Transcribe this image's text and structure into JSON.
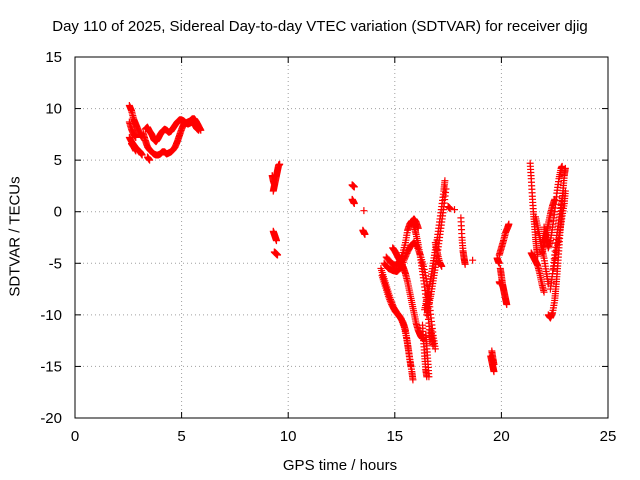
{
  "chart_data": {
    "type": "scatter",
    "title": "Day 110 of 2025, Sidereal Day-to-day VTEC variation (SDTVAR) for receiver djig",
    "xlabel": "GPS time / hours",
    "ylabel": "SDTVAR / TECUs",
    "xlim": [
      0,
      25
    ],
    "ylim": [
      -20,
      15
    ],
    "xticks": [
      0,
      5,
      10,
      15,
      20,
      25
    ],
    "yticks": [
      -20,
      -15,
      -10,
      -5,
      0,
      5,
      10,
      15
    ],
    "grid": true,
    "marker": "+",
    "color": "#ff0000",
    "segments": [
      [
        [
          2.55,
          10.3
        ],
        [
          2.65,
          9.8
        ],
        [
          2.75,
          9.0
        ],
        [
          2.85,
          8.5
        ],
        [
          2.95,
          8.0
        ],
        [
          3.05,
          7.5
        ],
        [
          3.15,
          7.2
        ]
      ],
      [
        [
          2.55,
          8.7
        ],
        [
          2.65,
          8.0
        ],
        [
          2.75,
          7.5
        ],
        [
          2.85,
          7.2
        ]
      ],
      [
        [
          2.55,
          7.2
        ],
        [
          2.65,
          6.8
        ],
        [
          2.75,
          6.5
        ],
        [
          2.85,
          6.2
        ],
        [
          2.95,
          6.0
        ],
        [
          3.05,
          5.8
        ],
        [
          3.15,
          5.5
        ]
      ],
      [
        [
          2.65,
          6.6
        ],
        [
          2.75,
          6.3
        ],
        [
          2.85,
          5.9
        ]
      ],
      [
        [
          3.2,
          7.6
        ],
        [
          3.3,
          6.9
        ],
        [
          3.4,
          6.3
        ],
        [
          3.5,
          6.0
        ],
        [
          3.6,
          5.8
        ],
        [
          3.7,
          5.6
        ],
        [
          3.8,
          5.5
        ],
        [
          3.9,
          5.5
        ],
        [
          4.0,
          5.6
        ],
        [
          4.1,
          5.8
        ],
        [
          4.2,
          5.8
        ],
        [
          4.3,
          5.6
        ],
        [
          4.4,
          5.7
        ],
        [
          4.5,
          5.8
        ],
        [
          4.6,
          6.0
        ],
        [
          4.7,
          6.3
        ],
        [
          4.8,
          6.8
        ],
        [
          4.9,
          7.4
        ],
        [
          5.0,
          8.0
        ],
        [
          5.1,
          8.5
        ],
        [
          5.2,
          8.6
        ],
        [
          5.3,
          8.7
        ],
        [
          5.4,
          8.8
        ],
        [
          5.5,
          9.0
        ],
        [
          5.6,
          9.0
        ],
        [
          5.7,
          8.7
        ],
        [
          5.8,
          8.3
        ],
        [
          5.9,
          7.9
        ]
      ],
      [
        [
          3.3,
          8.0
        ],
        [
          3.4,
          8.2
        ],
        [
          3.5,
          7.8
        ],
        [
          3.6,
          7.5
        ],
        [
          3.7,
          7.0
        ],
        [
          3.8,
          6.8
        ],
        [
          3.9,
          7.1
        ],
        [
          4.0,
          7.5
        ],
        [
          4.1,
          7.8
        ],
        [
          4.2,
          8.0
        ],
        [
          4.3,
          7.9
        ],
        [
          4.4,
          7.7
        ],
        [
          4.5,
          7.8
        ],
        [
          4.6,
          8.1
        ],
        [
          4.7,
          8.4
        ],
        [
          4.8,
          8.7
        ],
        [
          4.9,
          8.9
        ],
        [
          5.0,
          8.9
        ],
        [
          5.1,
          8.8
        ],
        [
          5.2,
          8.6
        ],
        [
          5.3,
          8.5
        ],
        [
          5.4,
          8.6
        ],
        [
          5.5,
          8.7
        ],
        [
          5.6,
          8.5
        ],
        [
          5.7,
          8.1
        ],
        [
          5.8,
          7.9
        ]
      ],
      [
        [
          3.4,
          5.3
        ],
        [
          3.5,
          5.0
        ]
      ],
      [
        [
          9.3,
          2.0
        ],
        [
          9.35,
          2.5
        ],
        [
          9.4,
          3.0
        ],
        [
          9.45,
          3.5
        ],
        [
          9.5,
          4.0
        ],
        [
          9.55,
          4.5
        ],
        [
          9.6,
          4.6
        ]
      ],
      [
        [
          9.25,
          3.5
        ],
        [
          9.3,
          3.0
        ],
        [
          9.35,
          2.7
        ]
      ],
      [
        [
          9.3,
          -1.9
        ],
        [
          9.35,
          -2.2
        ],
        [
          9.4,
          -2.5
        ],
        [
          9.45,
          -2.8
        ]
      ],
      [
        [
          9.35,
          -3.9
        ],
        [
          9.4,
          -4.0
        ],
        [
          9.45,
          -4.1
        ],
        [
          9.5,
          -4.2
        ]
      ],
      [
        [
          13.0,
          2.6
        ],
        [
          13.05,
          2.5
        ],
        [
          13.1,
          2.4
        ]
      ],
      [
        [
          13.0,
          1.2
        ],
        [
          13.05,
          1.0
        ],
        [
          13.1,
          0.8
        ]
      ],
      [
        [
          13.55,
          0.1
        ]
      ],
      [
        [
          13.5,
          -1.8
        ],
        [
          13.55,
          -2.0
        ],
        [
          13.6,
          -2.2
        ]
      ],
      [
        [
          14.35,
          -5.5
        ],
        [
          14.5,
          -6.5
        ],
        [
          14.65,
          -7.5
        ],
        [
          14.8,
          -8.5
        ],
        [
          14.95,
          -9.3
        ],
        [
          15.1,
          -9.8
        ],
        [
          15.25,
          -10.2
        ],
        [
          15.4,
          -10.8
        ],
        [
          15.5,
          -11.5
        ],
        [
          15.6,
          -12.8
        ],
        [
          15.7,
          -14.3
        ],
        [
          15.8,
          -15.5
        ],
        [
          15.85,
          -16.3
        ]
      ],
      [
        [
          14.4,
          -6.2
        ],
        [
          14.55,
          -7.2
        ],
        [
          14.7,
          -8.2
        ],
        [
          14.85,
          -9.0
        ],
        [
          15.0,
          -9.6
        ],
        [
          15.15,
          -10.0
        ],
        [
          15.3,
          -10.4
        ],
        [
          15.45,
          -11.2
        ],
        [
          15.55,
          -12.2
        ],
        [
          15.65,
          -13.5
        ],
        [
          15.75,
          -14.9
        ]
      ],
      [
        [
          14.9,
          -3.5
        ],
        [
          15.0,
          -3.8
        ],
        [
          15.1,
          -4.2
        ],
        [
          15.2,
          -4.6
        ],
        [
          15.3,
          -5.0
        ],
        [
          15.4,
          -5.4
        ],
        [
          15.5,
          -6.0
        ],
        [
          15.6,
          -6.8
        ],
        [
          15.7,
          -7.8
        ],
        [
          15.8,
          -8.8
        ],
        [
          15.9,
          -9.8
        ],
        [
          16.0,
          -10.8
        ],
        [
          16.1,
          -11.5
        ],
        [
          16.2,
          -12.0
        ],
        [
          16.3,
          -12.3
        ]
      ],
      [
        [
          14.5,
          -5.0
        ],
        [
          14.7,
          -5.5
        ],
        [
          14.9,
          -5.7
        ],
        [
          15.1,
          -5.8
        ],
        [
          15.3,
          -5.4
        ],
        [
          15.45,
          -4.6
        ],
        [
          15.6,
          -3.9
        ],
        [
          15.75,
          -3.3
        ],
        [
          15.9,
          -3.0
        ],
        [
          16.05,
          -3.4
        ],
        [
          16.2,
          -4.2
        ],
        [
          16.35,
          -5.3
        ],
        [
          16.5,
          -6.8
        ],
        [
          16.6,
          -8.5
        ],
        [
          16.7,
          -10.3
        ],
        [
          16.8,
          -12.0
        ],
        [
          16.9,
          -13.3
        ]
      ],
      [
        [
          14.6,
          -4.4
        ],
        [
          14.8,
          -4.9
        ],
        [
          15.0,
          -5.2
        ],
        [
          15.2,
          -5.0
        ],
        [
          15.35,
          -4.2
        ],
        [
          15.5,
          -3.0
        ],
        [
          15.6,
          -1.8
        ],
        [
          15.7,
          -1.2
        ],
        [
          15.8,
          -0.9
        ],
        [
          15.9,
          -1.4
        ],
        [
          16.0,
          -2.2
        ],
        [
          16.1,
          -3.2
        ],
        [
          16.2,
          -4.4
        ],
        [
          16.3,
          -5.8
        ],
        [
          16.4,
          -7.3
        ],
        [
          16.5,
          -9.0
        ],
        [
          16.6,
          -10.8
        ],
        [
          16.65,
          -12.4
        ]
      ],
      [
        [
          15.8,
          -1.0
        ],
        [
          15.9,
          -0.7
        ],
        [
          16.0,
          -1.0
        ],
        [
          16.1,
          -1.6
        ]
      ],
      [
        [
          16.4,
          -9.5
        ],
        [
          16.5,
          -8.5
        ],
        [
          16.6,
          -7.5
        ],
        [
          16.7,
          -6.3
        ],
        [
          16.8,
          -5.0
        ],
        [
          16.9,
          -3.7
        ],
        [
          17.0,
          -2.5
        ],
        [
          17.1,
          -1.0
        ],
        [
          17.2,
          0.5
        ],
        [
          17.3,
          2.0
        ],
        [
          17.35,
          3.0
        ]
      ],
      [
        [
          16.45,
          -12.0
        ],
        [
          16.5,
          -13.0
        ],
        [
          16.55,
          -14.5
        ],
        [
          16.6,
          -16.0
        ]
      ],
      [
        [
          16.5,
          -10.0
        ],
        [
          16.6,
          -9.0
        ],
        [
          16.7,
          -8.0
        ],
        [
          16.8,
          -6.7
        ],
        [
          16.9,
          -5.4
        ],
        [
          17.0,
          -4.0
        ],
        [
          17.1,
          -2.5
        ],
        [
          17.2,
          -1.0
        ],
        [
          17.3,
          0.5
        ],
        [
          17.4,
          2.2
        ]
      ],
      [
        [
          16.3,
          -11.0
        ],
        [
          16.35,
          -12.5
        ],
        [
          16.4,
          -14.0
        ],
        [
          16.45,
          -15.3
        ],
        [
          16.5,
          -16.0
        ]
      ],
      [
        [
          16.7,
          -11.5
        ],
        [
          16.75,
          -12.3
        ],
        [
          16.8,
          -13.0
        ]
      ],
      [
        [
          16.9,
          -3.0
        ],
        [
          17.0,
          -4.0
        ],
        [
          17.1,
          -4.9
        ],
        [
          17.2,
          -5.3
        ]
      ],
      [
        [
          17.5,
          0.5
        ],
        [
          17.6,
          0.3
        ]
      ],
      [
        [
          17.8,
          0.2
        ]
      ],
      [
        [
          18.1,
          -0.6
        ],
        [
          18.15,
          -2.5
        ],
        [
          18.2,
          -3.8
        ],
        [
          18.25,
          -4.5
        ],
        [
          18.3,
          -5.1
        ]
      ],
      [
        [
          18.65,
          -4.7
        ]
      ],
      [
        [
          19.5,
          -14.0
        ],
        [
          19.55,
          -14.5
        ],
        [
          19.6,
          -15.0
        ],
        [
          19.65,
          -15.5
        ]
      ],
      [
        [
          19.55,
          -13.5
        ],
        [
          19.6,
          -14.2
        ],
        [
          19.65,
          -14.8
        ]
      ],
      [
        [
          19.8,
          -4.5
        ],
        [
          19.85,
          -4.8
        ],
        [
          19.9,
          -5.0
        ]
      ],
      [
        [
          19.9,
          -6.8
        ],
        [
          19.95,
          -7.0
        ]
      ],
      [
        [
          19.9,
          -4.2
        ],
        [
          20.0,
          -3.5
        ],
        [
          20.1,
          -2.8
        ],
        [
          20.2,
          -2.0
        ],
        [
          20.3,
          -1.5
        ],
        [
          20.35,
          -1.2
        ]
      ],
      [
        [
          19.95,
          -5.5
        ],
        [
          20.0,
          -6.2
        ],
        [
          20.05,
          -7.0
        ],
        [
          20.1,
          -7.5
        ],
        [
          20.15,
          -8.0
        ],
        [
          20.2,
          -8.5
        ],
        [
          20.25,
          -9.0
        ]
      ],
      [
        [
          21.35,
          4.7
        ],
        [
          21.4,
          3.2
        ],
        [
          21.45,
          1.5
        ],
        [
          21.5,
          0.0
        ],
        [
          21.55,
          -1.2
        ],
        [
          21.6,
          -2.5
        ],
        [
          21.65,
          -3.5
        ],
        [
          21.7,
          -4.3
        ]
      ],
      [
        [
          21.4,
          -4.0
        ],
        [
          21.5,
          -4.4
        ],
        [
          21.6,
          -4.8
        ],
        [
          21.7,
          -5.2
        ],
        [
          21.8,
          -6.0
        ],
        [
          21.9,
          -7.0
        ],
        [
          22.0,
          -7.8
        ]
      ],
      [
        [
          21.6,
          -0.5
        ],
        [
          21.7,
          -1.5
        ],
        [
          21.8,
          -2.5
        ],
        [
          21.9,
          -3.5
        ],
        [
          22.0,
          -4.5
        ],
        [
          22.1,
          -5.8
        ],
        [
          22.2,
          -7.0
        ]
      ],
      [
        [
          22.0,
          -1.5
        ],
        [
          22.1,
          -2.5
        ],
        [
          22.2,
          -3.5
        ],
        [
          22.3,
          -2.8
        ],
        [
          22.4,
          -1.5
        ],
        [
          22.5,
          0.0
        ],
        [
          22.6,
          1.8
        ],
        [
          22.7,
          3.2
        ],
        [
          22.8,
          4.2
        ],
        [
          22.85,
          4.4
        ]
      ],
      [
        [
          21.9,
          -4.0
        ],
        [
          22.0,
          -3.2
        ],
        [
          22.1,
          -2.2
        ],
        [
          22.2,
          -1.2
        ],
        [
          22.3,
          -0.2
        ],
        [
          22.4,
          0.6
        ],
        [
          22.5,
          1.2
        ]
      ],
      [
        [
          22.2,
          -10.0
        ],
        [
          22.3,
          -10.3
        ],
        [
          22.4,
          -9.8
        ],
        [
          22.5,
          -8.6
        ],
        [
          22.55,
          -7.5
        ],
        [
          22.6,
          -6.3
        ],
        [
          22.65,
          -5.0
        ],
        [
          22.7,
          -3.5
        ],
        [
          22.75,
          -2.0
        ],
        [
          22.8,
          -0.5
        ],
        [
          22.85,
          1.0
        ],
        [
          22.9,
          2.3
        ],
        [
          22.95,
          3.5
        ],
        [
          23.0,
          4.2
        ]
      ],
      [
        [
          22.3,
          -7.5
        ],
        [
          22.4,
          -6.0
        ],
        [
          22.5,
          -4.2
        ],
        [
          22.6,
          -2.3
        ],
        [
          22.7,
          -0.8
        ],
        [
          22.8,
          0.6
        ],
        [
          22.9,
          1.8
        ]
      ],
      [
        [
          22.45,
          -5.5
        ],
        [
          22.55,
          -4.2
        ],
        [
          22.65,
          -3.0
        ],
        [
          22.75,
          -1.8
        ],
        [
          22.85,
          -0.4
        ],
        [
          22.95,
          0.8
        ],
        [
          23.0,
          2.0
        ]
      ]
    ]
  }
}
